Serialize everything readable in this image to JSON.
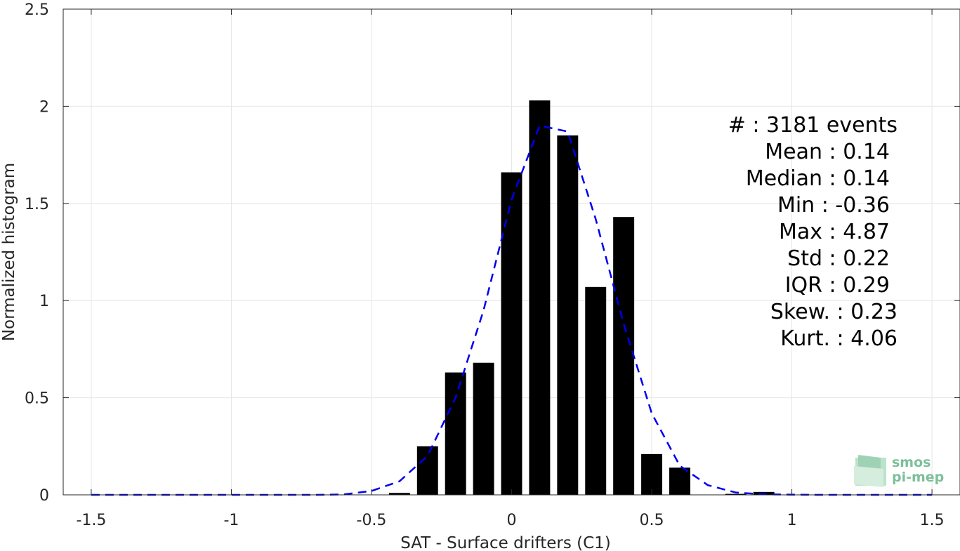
{
  "colors": {
    "bars": "#000000",
    "fit_line": "#0000ee",
    "grid": "#e6e6e6",
    "axis": "#262626",
    "logo": "#7dbf9a"
  },
  "stats": [
    "#  : 3181 events",
    "Mean : 0.14",
    "Median : 0.14",
    "Min : -0.36",
    "Max : 4.87",
    "Std : 0.22",
    "IQR : 0.29",
    "Skew. : 0.23",
    "Kurt. : 4.06"
  ],
  "logo": {
    "line1": "smos",
    "line2": "pi-mep"
  },
  "chart_data": {
    "type": "bar",
    "xlabel": "SAT - Surface drifters (C1)",
    "ylabel": "Normalized histogram",
    "xlim": [
      -1.6,
      1.6
    ],
    "ylim": [
      0,
      2.5
    ],
    "x_ticks": [
      -1.5,
      -1,
      -0.5,
      0,
      0.5,
      1,
      1.5
    ],
    "x_tick_labels": [
      "-1.5",
      "-1",
      "-0.5",
      "0",
      "0.5",
      "1",
      "1.5"
    ],
    "y_ticks": [
      0,
      0.5,
      1,
      1.5,
      2,
      2.5
    ],
    "y_tick_labels": [
      "0",
      "0.5",
      "1",
      "1.5",
      "2",
      "2.5"
    ],
    "grid": true,
    "bar_width": 0.075,
    "bars": {
      "x": [
        -0.4,
        -0.3,
        -0.2,
        -0.1,
        0,
        0.1,
        0.2,
        0.3,
        0.4,
        0.5,
        0.6,
        0.7,
        0.8,
        0.9
      ],
      "values": [
        0.01,
        0.25,
        0.63,
        0.68,
        1.66,
        2.03,
        1.85,
        1.07,
        1.43,
        0.21,
        0.14,
        0.0,
        0.005,
        0.015
      ]
    },
    "series": [
      {
        "style": "dashed",
        "x": [
          -1.5,
          -1.4,
          -1.3,
          -1.2,
          -1.1,
          -1.0,
          -0.9,
          -0.8,
          -0.7,
          -0.6,
          -0.5,
          -0.4,
          -0.3,
          -0.2,
          -0.1,
          0.0,
          0.1,
          0.2,
          0.3,
          0.4,
          0.5,
          0.6,
          0.7,
          0.8,
          0.9,
          1.0,
          1.1,
          1.2,
          1.3,
          1.4,
          1.5
        ],
        "values": [
          0,
          0,
          0,
          0,
          0,
          0,
          0,
          0,
          0,
          0.002,
          0.02,
          0.07,
          0.2,
          0.5,
          0.95,
          1.52,
          1.9,
          1.87,
          1.42,
          0.88,
          0.42,
          0.15,
          0.05,
          0.012,
          0.003,
          0.001,
          0,
          0,
          0,
          0,
          0
        ]
      }
    ]
  }
}
